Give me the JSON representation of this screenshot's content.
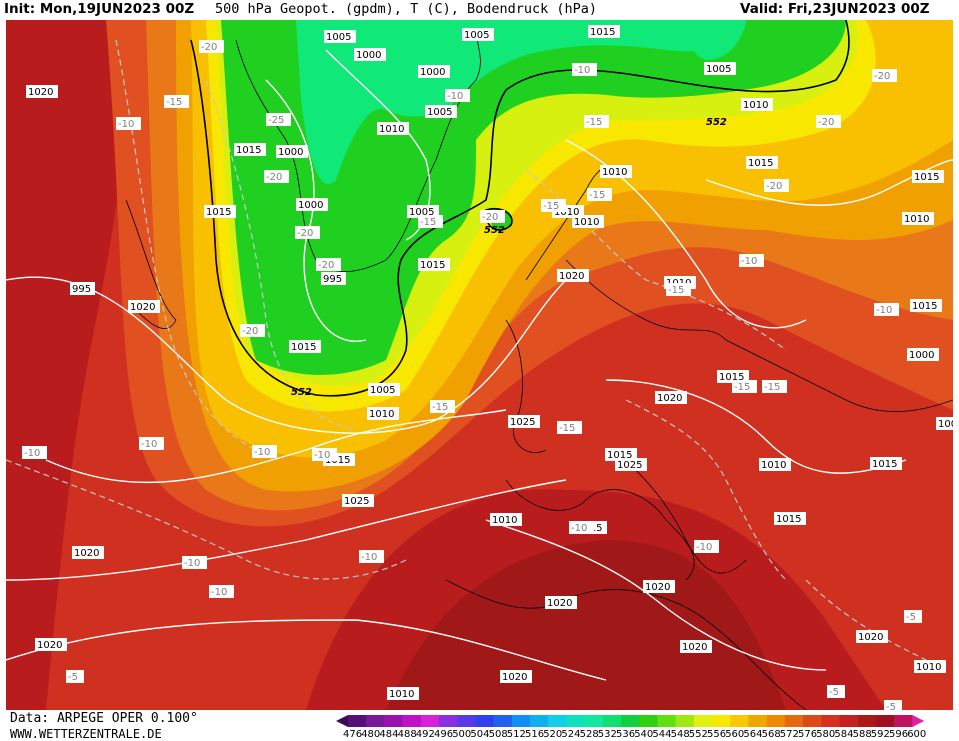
{
  "header": {
    "init": "Init: Mon,19JUN2023 00Z",
    "title": "500 hPa Geopot. (gpdm), T (C), Bodendruck (hPa)",
    "valid": "Valid: Fri,23JUN2023 00Z"
  },
  "footer": {
    "data_source": "Data: ARPEGE OPER 0.100°",
    "website": "WWW.WETTERZENTRALE.DE"
  },
  "colorbar": {
    "ticks": [
      "476",
      "480",
      "484",
      "488",
      "492",
      "496",
      "500",
      "504",
      "508",
      "512",
      "516",
      "520",
      "524",
      "528",
      "532",
      "536",
      "540",
      "544",
      "548",
      "552",
      "556",
      "560",
      "564",
      "568",
      "572",
      "576",
      "580",
      "584",
      "588",
      "592",
      "596",
      "600"
    ],
    "colors": [
      "#3a0a55",
      "#55107a",
      "#7a1a9a",
      "#9a10b0",
      "#c010c8",
      "#d820d8",
      "#8a30e0",
      "#5a3ae8",
      "#3040f0",
      "#2060f0",
      "#1090f0",
      "#10b0f0",
      "#10d0e8",
      "#10e0c0",
      "#10e8a0",
      "#10e070",
      "#10d040",
      "#30d010",
      "#60e010",
      "#a0e810",
      "#e0f010",
      "#f8e800",
      "#f8c800",
      "#f0a800",
      "#f08800",
      "#e86810",
      "#e04818",
      "#d83020",
      "#c82020",
      "#b01818",
      "#a01020",
      "#c01060",
      "#e020a0"
    ]
  },
  "map": {
    "fill_colors": {
      "green_core": "#10e878",
      "green": "#20d020",
      "lime": "#d8f010",
      "yellow": "#f8e800",
      "gold": "#f8c000",
      "orange": "#f0a000",
      "dark_orange": "#e87818",
      "red_orange": "#e05020",
      "red": "#d03020",
      "dark_red": "#b81c1c",
      "darkest_red": "#a01818"
    },
    "contour_552_label": "552",
    "isobar_labels": [
      "1005",
      "1005",
      "1015",
      "1000",
      "1000",
      "1005",
      "1000",
      "1010",
      "1005",
      "1015",
      "1010",
      "1015",
      "1000",
      "1005",
      "1010",
      "1010",
      "995",
      "1020",
      "1015",
      "1010",
      "1015",
      "1015",
      "1020",
      "1010",
      "1020",
      "995",
      "1015",
      "1010",
      "1015",
      "1000",
      "1025",
      "1005",
      "1010",
      "1015",
      "1015",
      "1020",
      "1010",
      "1015",
      "1015",
      "1025",
      "1025",
      "1020",
      "1020",
      "1020",
      "1015",
      "1010",
      "1015",
      "1020",
      "1020",
      "1010",
      "1020",
      "1020",
      "1010",
      "1000"
    ],
    "temp_labels": [
      "-20",
      "-15",
      "-10",
      "-25",
      "-20",
      "-20",
      "-20",
      "-20",
      "-15",
      "-15",
      "-20",
      "-20",
      "-20",
      "-15",
      "-10",
      "-15",
      "-10",
      "-10",
      "-20",
      "-15",
      "-15",
      "-15",
      "-15",
      "-10",
      "-10",
      "-10",
      "-10",
      "-10",
      "-10",
      "-10",
      "-10",
      "-5",
      "-5",
      "-5",
      "-5",
      "-10",
      "-10",
      "-15"
    ]
  }
}
